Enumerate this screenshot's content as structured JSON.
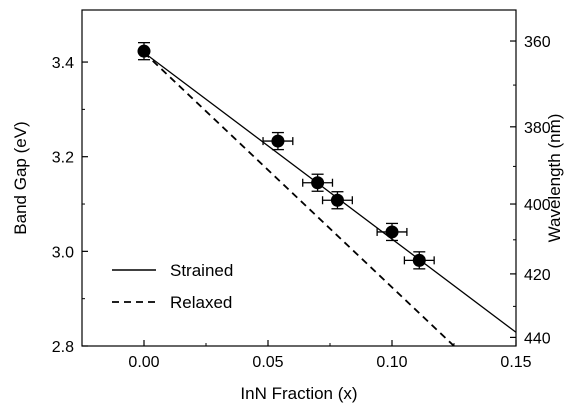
{
  "chart_data": {
    "type": "scatter",
    "xlabel": "InN Fraction (x)",
    "ylabel": "Band Gap (eV)",
    "y2label": "Wavelength (nm)",
    "xlim": [
      -0.025,
      0.15
    ],
    "ylim": [
      2.8,
      3.51
    ],
    "x_ticks": [
      0.0,
      0.05,
      0.1,
      0.15
    ],
    "x_tick_labels": [
      "0.00",
      "0.05",
      "0.10",
      "0.15"
    ],
    "y_ticks": [
      2.8,
      3.0,
      3.2,
      3.4
    ],
    "y_tick_labels": [
      "2.8",
      "3.0",
      "3.2",
      "3.4"
    ],
    "y2_ticks": [
      360,
      380,
      400,
      420,
      440
    ],
    "y2_tick_labels": [
      "360",
      "380",
      "400",
      "420",
      "440"
    ],
    "grid": false,
    "legend_position": "bottom-left",
    "points": [
      {
        "x": 0.0,
        "y": 3.423,
        "xerr": 0.0,
        "yerr": 0.018
      },
      {
        "x": 0.054,
        "y": 3.233,
        "xerr": 0.006,
        "yerr": 0.018
      },
      {
        "x": 0.07,
        "y": 3.145,
        "xerr": 0.006,
        "yerr": 0.018
      },
      {
        "x": 0.078,
        "y": 3.108,
        "xerr": 0.006,
        "yerr": 0.018
      },
      {
        "x": 0.1,
        "y": 3.041,
        "xerr": 0.006,
        "yerr": 0.018
      },
      {
        "x": 0.111,
        "y": 2.981,
        "xerr": 0.006,
        "yerr": 0.018
      }
    ],
    "lines": [
      {
        "name": "Strained",
        "style": "solid",
        "x": [
          0.0,
          0.15
        ],
        "y": [
          3.42,
          2.829
        ]
      },
      {
        "name": "Relaxed",
        "style": "dashed",
        "x": [
          0.0,
          0.125
        ],
        "y": [
          3.42,
          2.8
        ]
      }
    ]
  }
}
